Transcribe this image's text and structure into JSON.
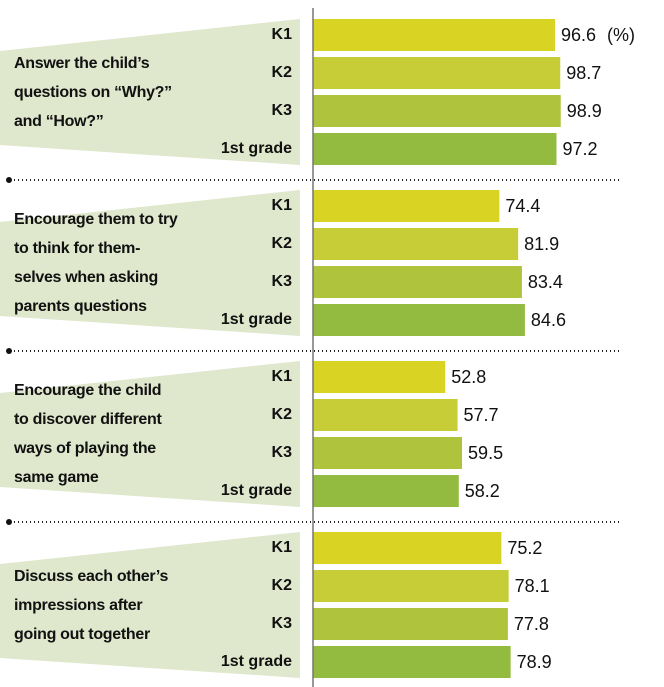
{
  "chart_data": {
    "type": "bar",
    "orientation": "horizontal",
    "unit": "(%)",
    "categories": [
      "Answer the child’s\nquestions on “Why?”\nand “How?”",
      "Encourage them to try\nto think for them-\nselves when asking\nparents questions",
      "Encourage the child\nto discover different\nways of playing the\nsame game",
      "Discuss each other’s\nimpressions after\ngoing out together"
    ],
    "series": [
      {
        "name": "K1",
        "color": "#d9d424",
        "values": [
          96.6,
          74.4,
          52.8,
          75.2
        ]
      },
      {
        "name": "K2",
        "color": "#c6cd36",
        "values": [
          98.7,
          81.9,
          57.7,
          78.1
        ]
      },
      {
        "name": "K3",
        "color": "#afc43c",
        "values": [
          98.9,
          83.4,
          59.5,
          77.8
        ]
      },
      {
        "name": "1st grade",
        "color": "#93bb40",
        "values": [
          97.2,
          84.6,
          58.2,
          78.9
        ]
      }
    ]
  }
}
